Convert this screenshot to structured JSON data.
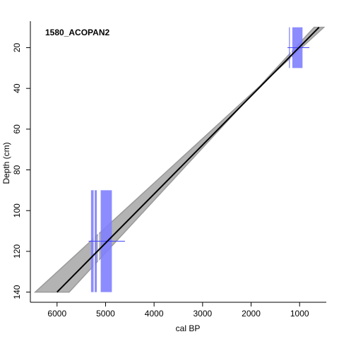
{
  "chart_data": {
    "type": "line",
    "title": "1580_ACOPAN2",
    "xlabel": "cal BP",
    "ylabel": "Depth (cm)",
    "x_reversed": true,
    "y_reversed": true,
    "xlim": [
      6550,
      450
    ],
    "ylim": [
      7,
      145
    ],
    "x_ticks": [
      6000,
      5000,
      4000,
      3000,
      2000,
      1000
    ],
    "y_ticks": [
      20,
      40,
      60,
      80,
      100,
      120,
      140
    ],
    "grid": false,
    "colors": {
      "envelope": "#b3b3b3",
      "envelope_edge": "#9a9a9a",
      "model_line": "#000000",
      "date_block": "#8080ff",
      "date_cross": "#4444ff",
      "gap": "#ffffff"
    },
    "envelope": {
      "upper": [
        {
          "x": 6450,
          "y": 140
        },
        {
          "x": 500,
          "y": 10
        }
      ],
      "lower": [
        {
          "x": 5750,
          "y": 140
        },
        {
          "x": 700,
          "y": 10
        }
      ]
    },
    "age_model": [
      {
        "x": 6000,
        "y": 140
      },
      {
        "x": 600,
        "y": 10
      }
    ],
    "dates": [
      {
        "blocks": [
          {
            "x_from": 5300,
            "x_to": 5180,
            "y_from": 90,
            "y_to": 140
          },
          {
            "x_from": 5100,
            "x_to": 4870,
            "y_from": 90,
            "y_to": 140
          }
        ],
        "gaps": [
          5235,
          5145
        ],
        "cross": {
          "x": 5000,
          "y": 115,
          "x_from": 5350,
          "x_to": 4600
        }
      },
      {
        "blocks": [
          {
            "x_from": 1220,
            "x_to": 1200,
            "y_from": 10,
            "y_to": 30
          },
          {
            "x_from": 1150,
            "x_to": 940,
            "y_from": 10,
            "y_to": 30
          }
        ],
        "gaps": [
          1175
        ],
        "cross": {
          "x": 1070,
          "y": 20,
          "x_from": 1250,
          "x_to": 800
        }
      }
    ]
  }
}
